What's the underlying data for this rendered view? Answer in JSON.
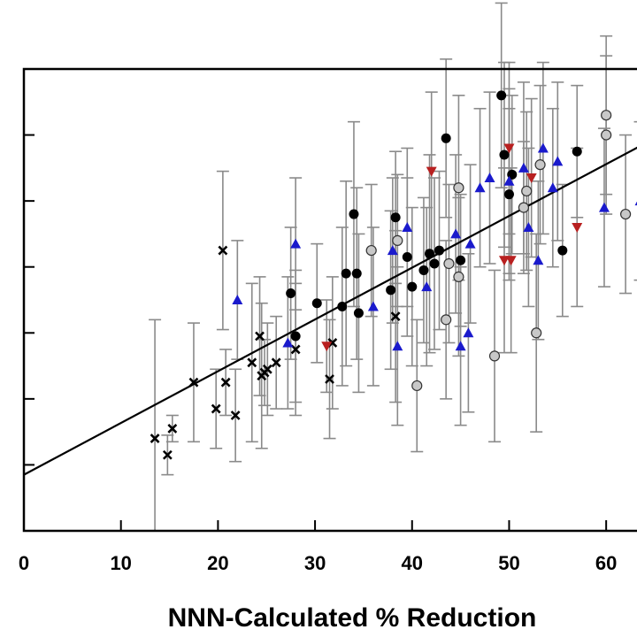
{
  "chart_data": {
    "type": "scatter",
    "xlabel": "NNN-Calculated % Reduction",
    "ylabel": "",
    "xlim": [
      0,
      65
    ],
    "ylim": [
      0,
      70
    ],
    "x_ticks": [
      0,
      10,
      20,
      30,
      40,
      50,
      60
    ],
    "grid": false,
    "legend": "none",
    "error_bar_color": "#8a8a8a",
    "trendline": {
      "color": "#000000",
      "points": [
        [
          0,
          8.5
        ],
        [
          65,
          59.5
        ]
      ]
    },
    "series": [
      {
        "marker": "cross",
        "color": "#000000",
        "points": [
          {
            "x": 13.5,
            "y": 14,
            "err": 18
          },
          {
            "x": 14.8,
            "y": 11.5,
            "err": 3
          },
          {
            "x": 15.3,
            "y": 15.5,
            "err": 2
          },
          {
            "x": 17.5,
            "y": 22.5,
            "err": 9
          },
          {
            "x": 19.8,
            "y": 18.5,
            "err": 6
          },
          {
            "x": 20.5,
            "y": 42.5,
            "err": 12
          },
          {
            "x": 20.8,
            "y": 22.5,
            "err": 5
          },
          {
            "x": 21.8,
            "y": 17.5,
            "err": 7
          },
          {
            "x": 23.5,
            "y": 25.5,
            "err": 12
          },
          {
            "x": 24.3,
            "y": 29.5,
            "err": 9
          },
          {
            "x": 24.5,
            "y": 23.5,
            "err": 11
          },
          {
            "x": 24.8,
            "y": 24.0,
            "err": 5
          },
          {
            "x": 25.1,
            "y": 24.5,
            "err": 7
          },
          {
            "x": 26.0,
            "y": 25.5,
            "err": 7
          },
          {
            "x": 28.0,
            "y": 27.5,
            "err": 10
          },
          {
            "x": 31.5,
            "y": 23.0,
            "err": 9
          },
          {
            "x": 31.8,
            "y": 28.5,
            "err": 10
          },
          {
            "x": 38.3,
            "y": 32.5,
            "err": 13
          }
        ]
      },
      {
        "marker": "circle",
        "color": "#000000",
        "points": [
          {
            "x": 27.5,
            "y": 36,
            "err": 10
          },
          {
            "x": 28.0,
            "y": 29.5,
            "err": 10
          },
          {
            "x": 30.2,
            "y": 34.5,
            "err": 9
          },
          {
            "x": 32.8,
            "y": 34.0,
            "err": 12
          },
          {
            "x": 33.2,
            "y": 39.0,
            "err": 14
          },
          {
            "x": 34.0,
            "y": 48.0,
            "err": 14
          },
          {
            "x": 34.3,
            "y": 39.0,
            "err": 13
          },
          {
            "x": 34.5,
            "y": 33.0,
            "err": 12
          },
          {
            "x": 37.8,
            "y": 36.5,
            "err": 12
          },
          {
            "x": 38.3,
            "y": 47.5,
            "err": 10
          },
          {
            "x": 39.5,
            "y": 41.5,
            "err": 12
          },
          {
            "x": 40.0,
            "y": 37.0,
            "err": 12
          },
          {
            "x": 41.2,
            "y": 39.5,
            "err": 11
          },
          {
            "x": 41.8,
            "y": 42.0,
            "err": 15
          },
          {
            "x": 42.3,
            "y": 40.5,
            "err": 13
          },
          {
            "x": 42.8,
            "y": 42.5,
            "err": 12
          },
          {
            "x": 43.5,
            "y": 59.5,
            "err": 12
          },
          {
            "x": 45.0,
            "y": 41.0,
            "err": 10
          },
          {
            "x": 49.2,
            "y": 66.0,
            "err": 14
          },
          {
            "x": 49.5,
            "y": 57.0,
            "err": 14
          },
          {
            "x": 50.0,
            "y": 51.0,
            "err": 13
          },
          {
            "x": 50.3,
            "y": 54.0,
            "err": 12
          },
          {
            "x": 55.5,
            "y": 42.5,
            "err": 10
          },
          {
            "x": 57.0,
            "y": 57.5,
            "err": 10
          }
        ]
      },
      {
        "marker": "open-circle",
        "color": "#c8c8c8",
        "points": [
          {
            "x": 35.8,
            "y": 42.5,
            "err": 10
          },
          {
            "x": 38.5,
            "y": 44.0,
            "err": 10
          },
          {
            "x": 40.5,
            "y": 22.0,
            "err": 10
          },
          {
            "x": 43.5,
            "y": 32.0,
            "err": 12
          },
          {
            "x": 43.8,
            "y": 40.5,
            "err": 12
          },
          {
            "x": 44.8,
            "y": 38.5,
            "err": 12
          },
          {
            "x": 44.8,
            "y": 52.0,
            "err": 14
          },
          {
            "x": 48.5,
            "y": 26.5,
            "err": 13
          },
          {
            "x": 51.5,
            "y": 49.0,
            "err": 10
          },
          {
            "x": 51.8,
            "y": 51.5,
            "err": 12
          },
          {
            "x": 52.8,
            "y": 30.0,
            "err": 15
          },
          {
            "x": 53.2,
            "y": 55.5,
            "err": 12
          },
          {
            "x": 60.0,
            "y": 63.0,
            "err": 12
          },
          {
            "x": 60.0,
            "y": 60.0,
            "err": 12
          },
          {
            "x": 62.0,
            "y": 48.0,
            "err": 12
          }
        ]
      },
      {
        "marker": "triangle-up",
        "color": "#1a1acc",
        "points": [
          {
            "x": 22.0,
            "y": 35.0,
            "err": 9
          },
          {
            "x": 27.2,
            "y": 28.5,
            "err": 10
          },
          {
            "x": 28.0,
            "y": 43.5,
            "err": 10
          },
          {
            "x": 36.0,
            "y": 34.0,
            "err": 12
          },
          {
            "x": 38.0,
            "y": 42.5,
            "err": 11
          },
          {
            "x": 38.5,
            "y": 28.0,
            "err": 12
          },
          {
            "x": 39.5,
            "y": 46.0,
            "err": 12
          },
          {
            "x": 41.5,
            "y": 37.0,
            "err": 12
          },
          {
            "x": 44.5,
            "y": 45.0,
            "err": 12
          },
          {
            "x": 45.0,
            "y": 28.0,
            "err": 12
          },
          {
            "x": 45.8,
            "y": 30.0,
            "err": 12
          },
          {
            "x": 46.0,
            "y": 43.5,
            "err": 12
          },
          {
            "x": 47.0,
            "y": 52.0,
            "err": 12
          },
          {
            "x": 48.0,
            "y": 53.5,
            "err": 13
          },
          {
            "x": 50.0,
            "y": 53.0,
            "err": 14
          },
          {
            "x": 51.5,
            "y": 55.0,
            "err": 13
          },
          {
            "x": 52.0,
            "y": 46.0,
            "err": 12
          },
          {
            "x": 53.0,
            "y": 41.0,
            "err": 12
          },
          {
            "x": 53.5,
            "y": 58.0,
            "err": 13
          },
          {
            "x": 54.5,
            "y": 52.0,
            "err": 12
          },
          {
            "x": 55.0,
            "y": 56.0,
            "err": 12
          },
          {
            "x": 59.8,
            "y": 49.0,
            "err": 12
          },
          {
            "x": 63.5,
            "y": 50.0,
            "err": 12
          }
        ]
      },
      {
        "marker": "triangle-down",
        "color": "#b82020",
        "points": [
          {
            "x": 31.2,
            "y": 28.0,
            "err": 7
          },
          {
            "x": 42.0,
            "y": 54.5,
            "err": 12
          },
          {
            "x": 49.5,
            "y": 41.0,
            "err": 14
          },
          {
            "x": 50.2,
            "y": 41.0,
            "err": 14
          },
          {
            "x": 50.0,
            "y": 58.0,
            "err": 13
          },
          {
            "x": 52.3,
            "y": 53.5,
            "err": 12
          },
          {
            "x": 57.0,
            "y": 46.0,
            "err": 12
          }
        ]
      }
    ]
  }
}
